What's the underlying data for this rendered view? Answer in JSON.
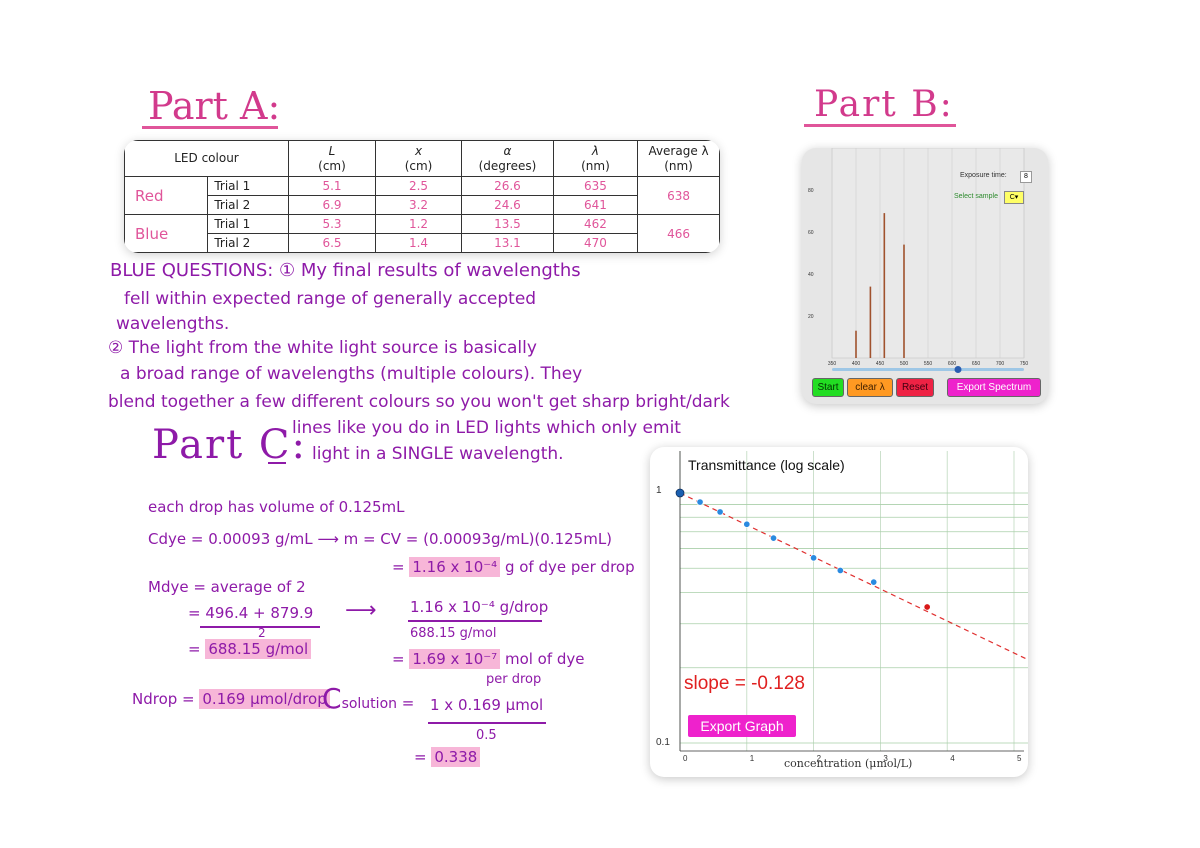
{
  "part_a": {
    "heading": "Part A:",
    "table": {
      "headers": {
        "led_colour": "LED colour",
        "L": "L",
        "L_unit": "(cm)",
        "x": "x",
        "x_unit": "(cm)",
        "alpha": "α",
        "alpha_unit": "(degrees)",
        "lambda": "λ",
        "lambda_unit": "(nm)",
        "avg": "Average λ",
        "avg_unit": "(nm)"
      },
      "red": {
        "label": "Red",
        "trial1": {
          "name": "Trial 1",
          "L": "5.1",
          "x": "2.5",
          "alpha": "26.6",
          "lambda": "635"
        },
        "trial2": {
          "name": "Trial 2",
          "L": "6.9",
          "x": "3.2",
          "alpha": "24.6",
          "lambda": "641"
        },
        "average": "638"
      },
      "blue": {
        "label": "Blue",
        "trial1": {
          "name": "Trial 1",
          "L": "5.3",
          "x": "1.2",
          "alpha": "13.5",
          "lambda": "462"
        },
        "trial2": {
          "name": "Trial 2",
          "L": "6.5",
          "x": "1.4",
          "alpha": "13.1",
          "lambda": "470"
        },
        "average": "466"
      }
    }
  },
  "blue_questions": {
    "line1": "BLUE QUESTIONS: ① My final results of wavelengths",
    "line2": "fell within expected range of generally accepted",
    "line3": "wavelengths.",
    "line4": "② The light from the white light source is basically",
    "line5": "a broad range of wavelengths (multiple colours). They",
    "line6": "blend together a few different colours so you won't get sharp bright/dark",
    "line7": "lines like you do in LED lights which only emit",
    "line8": "light in a SINGLE wavelength."
  },
  "part_b": {
    "heading": "Part B:",
    "spectrum": {
      "exposure_label": "Exposure time:",
      "exposure_value": "8",
      "sample_label": "Select sample",
      "sample_value": "C",
      "y_ticks": [
        "80",
        "60",
        "40",
        "20"
      ],
      "x_ticks": [
        "350",
        "400",
        "450",
        "500",
        "550",
        "600",
        "650",
        "700",
        "750"
      ],
      "buttons": {
        "start": "Start",
        "clear": "clear λ",
        "reset": "Reset",
        "export": "Export Spectrum"
      }
    }
  },
  "part_c": {
    "heading": "Part C:",
    "calc": {
      "l1": "each drop has volume of  0.125mL",
      "l2": "Cdye = 0.00093 g/mL  ⟶ m = CV = (0.00093g/mL)(0.125mL)",
      "l3a": "= ",
      "l3b": "1.16 x 10⁻⁴",
      "l3c": " g of dye per drop",
      "l4": "Mdye = average of 2",
      "l5": "= 496.4 + 879.9",
      "l5b": "2",
      "l5c": "⟶",
      "l6a": "= ",
      "l6b": "688.15 g/mol",
      "l7": "1.16 x 10⁻⁴ g/drop",
      "l8": "688.15 g/mol",
      "l9a": "= ",
      "l9b": "1.69 x 10⁻⁷",
      "l9c": " mol of dye",
      "l9d": "per drop",
      "l10a": "Ndrop = ",
      "l10b": "0.169 μmol/drop",
      "l11a": "C",
      "l11b": "solution",
      "l11c": "= ",
      "l11d": "1 x 0.169 μmol",
      "l11e": "0.5",
      "l12a": "= ",
      "l12b": "0.338"
    }
  },
  "graph": {
    "title": "Transmittance (log scale)",
    "slope": "slope = -0.128",
    "export_button": "Export Graph",
    "y_top": "1",
    "y_bottom": "0.1",
    "x_ticks": [
      "0",
      "1",
      "2",
      "3",
      "4",
      "5"
    ],
    "xlabel": "concentration (μmol/L)"
  },
  "chart_data": [
    {
      "type": "bar",
      "x": [
        400,
        430,
        459,
        500
      ],
      "values": [
        13,
        34,
        69,
        54
      ],
      "ylim": [
        0,
        100
      ],
      "xlim": [
        350,
        750
      ],
      "grid": true
    },
    {
      "type": "scatter",
      "title": "Transmittance (log scale)",
      "xlabel": "concentration (μmol/L)",
      "ylabel": "",
      "y_scale": "log",
      "xlim": [
        0,
        5
      ],
      "ylim": [
        0.1,
        1
      ],
      "x": [
        0,
        0.3,
        0.6,
        1.0,
        1.4,
        2.0,
        2.4,
        2.9,
        3.7
      ],
      "y": [
        1.0,
        0.92,
        0.84,
        0.75,
        0.66,
        0.55,
        0.49,
        0.44,
        0.35
      ],
      "highlight_last": true,
      "fit_slope": -0.128,
      "grid": true
    }
  ]
}
